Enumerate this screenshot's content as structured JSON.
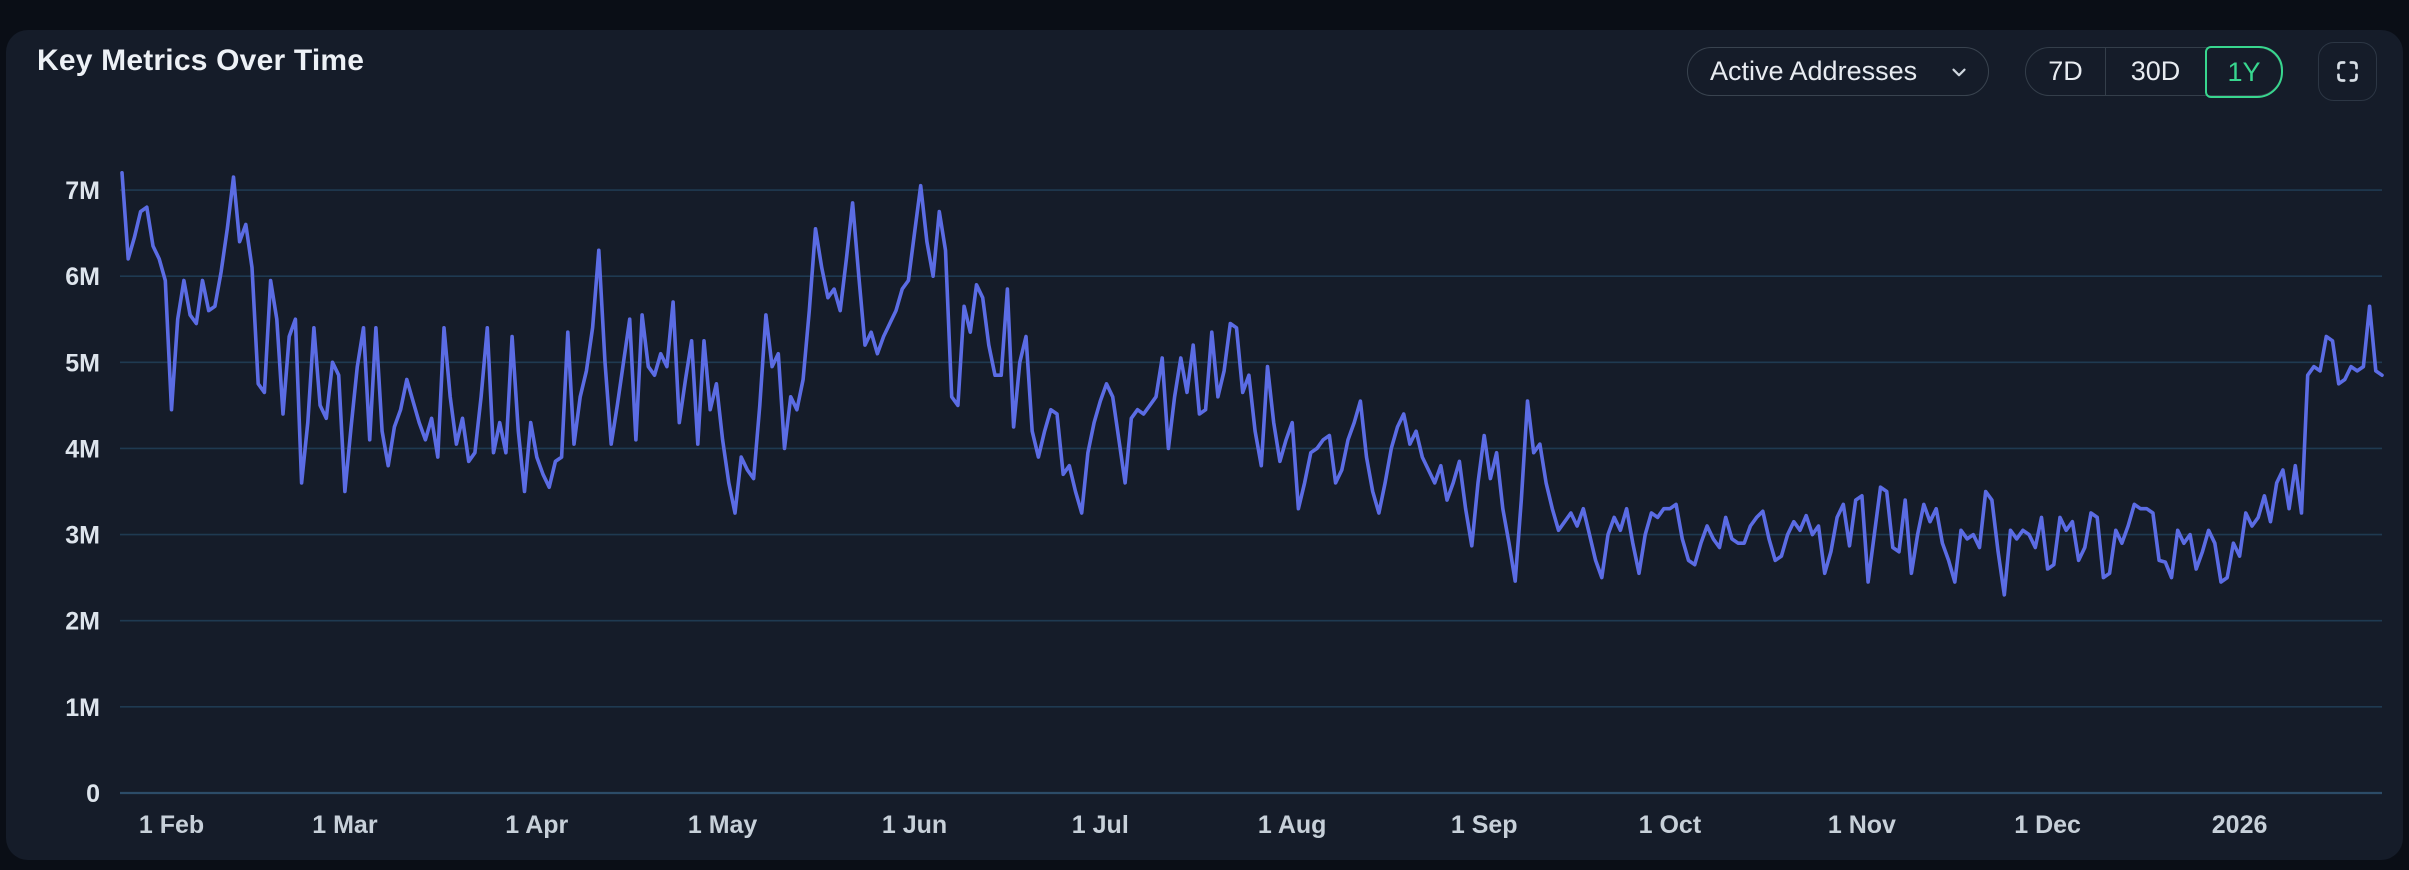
{
  "header": {
    "title": "Key Metrics Over Time",
    "metric_dropdown": {
      "selected": "Active Addresses"
    },
    "range_buttons": [
      {
        "label": "7D",
        "active": false
      },
      {
        "label": "30D",
        "active": false
      },
      {
        "label": "1Y",
        "active": true
      }
    ]
  },
  "colors": {
    "page_bg": "#0a0e16",
    "card_bg": "#151c29",
    "line_blue": "#5b6ce4",
    "accent_green": "#38d68e",
    "grid": "#1f3a51",
    "grid_zero": "#2c4c68",
    "y_label": "#dde4ec",
    "x_label": "#c7d0d9"
  },
  "chart_data": {
    "type": "line",
    "title": "Key Metrics Over Time",
    "series_name": "Active Addresses",
    "values_unit": "millions",
    "y_unit_suffix": "M",
    "ylim": [
      0,
      7.5
    ],
    "grid": "horizontal",
    "legend": "none",
    "selected_range": "1Y",
    "y_ticks": [
      "7M",
      "6M",
      "5M",
      "4M",
      "3M",
      "2M",
      "1M",
      "0"
    ],
    "y_tick_values": [
      7,
      6,
      5,
      4,
      3,
      2,
      1,
      0
    ],
    "x_ticks": [
      {
        "label": "1 Feb",
        "index": 8
      },
      {
        "label": "1 Mar",
        "index": 36
      },
      {
        "label": "1 Apr",
        "index": 67
      },
      {
        "label": "1 May",
        "index": 97
      },
      {
        "label": "1 Jun",
        "index": 128
      },
      {
        "label": "1 Jul",
        "index": 158
      },
      {
        "label": "1 Aug",
        "index": 189
      },
      {
        "label": "1 Sep",
        "index": 220
      },
      {
        "label": "1 Oct",
        "index": 250
      },
      {
        "label": "1 Nov",
        "index": 281
      },
      {
        "label": "1 Dec",
        "index": 311
      },
      {
        "label": "2026",
        "index": 342
      }
    ],
    "values": [
      7.2,
      6.2,
      6.45,
      6.75,
      6.8,
      6.35,
      6.2,
      5.95,
      4.45,
      5.5,
      5.95,
      5.55,
      5.45,
      5.95,
      5.6,
      5.65,
      6.05,
      6.55,
      7.15,
      6.4,
      6.6,
      6.1,
      4.75,
      4.65,
      5.95,
      5.5,
      4.4,
      5.3,
      5.5,
      3.6,
      4.3,
      5.4,
      4.5,
      4.35,
      5.0,
      4.85,
      3.5,
      4.25,
      4.95,
      5.4,
      4.1,
      5.4,
      4.2,
      3.8,
      4.25,
      4.45,
      4.8,
      4.55,
      4.3,
      4.1,
      4.35,
      3.9,
      5.4,
      4.6,
      4.05,
      4.35,
      3.85,
      3.95,
      4.6,
      5.4,
      3.95,
      4.3,
      3.95,
      5.3,
      4.2,
      3.5,
      4.3,
      3.9,
      3.7,
      3.55,
      3.85,
      3.9,
      5.35,
      4.05,
      4.6,
      4.9,
      5.4,
      6.3,
      5.0,
      4.05,
      4.5,
      5.0,
      5.5,
      4.1,
      5.55,
      4.95,
      4.85,
      5.1,
      4.95,
      5.7,
      4.3,
      4.8,
      5.25,
      4.05,
      5.25,
      4.45,
      4.75,
      4.1,
      3.6,
      3.25,
      3.9,
      3.75,
      3.65,
      4.5,
      5.55,
      4.95,
      5.1,
      4.0,
      4.6,
      4.45,
      4.8,
      5.6,
      6.55,
      6.1,
      5.75,
      5.85,
      5.6,
      6.2,
      6.85,
      6.0,
      5.2,
      5.35,
      5.1,
      5.3,
      5.45,
      5.6,
      5.85,
      5.95,
      6.5,
      7.05,
      6.4,
      6.0,
      6.75,
      6.3,
      4.6,
      4.5,
      5.65,
      5.35,
      5.9,
      5.75,
      5.2,
      4.85,
      4.85,
      5.85,
      4.25,
      5.0,
      5.3,
      4.2,
      3.9,
      4.2,
      4.45,
      4.4,
      3.7,
      3.8,
      3.5,
      3.25,
      3.95,
      4.3,
      4.55,
      4.75,
      4.6,
      4.1,
      3.6,
      4.35,
      4.45,
      4.4,
      4.5,
      4.6,
      5.05,
      4.0,
      4.6,
      5.05,
      4.65,
      5.2,
      4.4,
      4.45,
      5.35,
      4.6,
      4.9,
      5.45,
      5.4,
      4.65,
      4.85,
      4.2,
      3.8,
      4.95,
      4.3,
      3.85,
      4.1,
      4.3,
      3.3,
      3.6,
      3.95,
      4.0,
      4.1,
      4.15,
      3.6,
      3.75,
      4.1,
      4.3,
      4.55,
      3.9,
      3.5,
      3.25,
      3.6,
      4.0,
      4.25,
      4.4,
      4.05,
      4.2,
      3.9,
      3.75,
      3.6,
      3.8,
      3.4,
      3.6,
      3.85,
      3.3,
      2.87,
      3.6,
      4.15,
      3.65,
      3.95,
      3.3,
      2.9,
      2.46,
      3.4,
      4.55,
      3.95,
      4.05,
      3.6,
      3.3,
      3.05,
      3.15,
      3.25,
      3.1,
      3.3,
      3.0,
      2.7,
      2.5,
      3.0,
      3.2,
      3.05,
      3.3,
      2.9,
      2.55,
      3.0,
      3.25,
      3.2,
      3.3,
      3.3,
      3.35,
      2.95,
      2.7,
      2.65,
      2.9,
      3.1,
      2.95,
      2.85,
      3.2,
      2.95,
      2.9,
      2.9,
      3.1,
      3.2,
      3.27,
      2.95,
      2.7,
      2.75,
      3.0,
      3.15,
      3.05,
      3.22,
      3.0,
      3.1,
      2.55,
      2.8,
      3.2,
      3.35,
      2.87,
      3.4,
      3.45,
      2.45,
      3.0,
      3.55,
      3.5,
      2.85,
      2.8,
      3.4,
      2.55,
      3.0,
      3.35,
      3.15,
      3.3,
      2.9,
      2.7,
      2.45,
      3.05,
      2.95,
      3.0,
      2.85,
      3.5,
      3.4,
      2.8,
      2.3,
      3.05,
      2.95,
      3.05,
      3.0,
      2.85,
      3.2,
      2.6,
      2.65,
      3.2,
      3.05,
      3.15,
      2.7,
      2.85,
      3.25,
      3.2,
      2.5,
      2.55,
      3.05,
      2.9,
      3.1,
      3.35,
      3.3,
      3.3,
      3.25,
      2.7,
      2.68,
      2.5,
      3.05,
      2.9,
      3.0,
      2.6,
      2.8,
      3.05,
      2.9,
      2.45,
      2.5,
      2.9,
      2.75,
      3.25,
      3.1,
      3.2,
      3.45,
      3.15,
      3.6,
      3.75,
      3.3,
      3.8,
      3.25,
      4.85,
      4.95,
      4.9,
      5.3,
      5.25,
      4.75,
      4.8,
      4.95,
      4.9,
      4.95,
      5.65,
      4.9,
      4.85
    ]
  }
}
